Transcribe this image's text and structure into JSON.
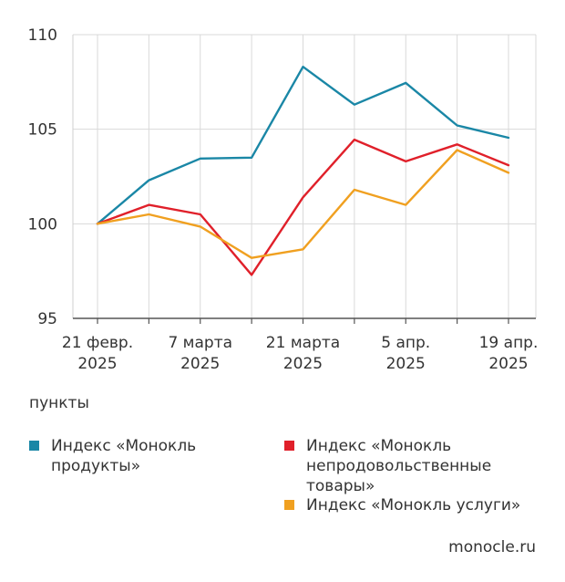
{
  "chart_data": {
    "type": "line",
    "title": "",
    "xlabel": "",
    "ylabel": "пункты",
    "ylim": [
      95,
      110
    ],
    "yticks": [
      95,
      100,
      105,
      110
    ],
    "x": [
      0,
      1,
      2,
      3,
      4,
      5,
      6,
      7,
      8
    ],
    "xtick_labels": [
      {
        "x": 0,
        "line1": "21 февр.",
        "line2": "2025"
      },
      {
        "x": 2,
        "line1": "7 марта",
        "line2": "2025"
      },
      {
        "x": 4,
        "line1": "21 марта",
        "line2": "2025"
      },
      {
        "x": 6,
        "line1": "5 апр.",
        "line2": "2025"
      },
      {
        "x": 8,
        "line1": "19 апр.",
        "line2": "2025"
      }
    ],
    "series": [
      {
        "name": "Индекс «Монокль продукты»",
        "color": "#1a87a6",
        "values": [
          100.0,
          102.3,
          103.45,
          103.5,
          108.3,
          106.3,
          107.45,
          105.2,
          104.55
        ]
      },
      {
        "name": "Индекс «Монокль непродовольственные товары»",
        "color": "#e0202a",
        "values": [
          100.0,
          101.0,
          100.5,
          97.3,
          101.4,
          104.45,
          103.3,
          104.2,
          103.1
        ]
      },
      {
        "name": "Индекс «Монокль услуги»",
        "color": "#f0a020",
        "values": [
          100.0,
          100.5,
          99.85,
          98.2,
          98.65,
          101.8,
          101.0,
          103.9,
          102.7
        ]
      }
    ]
  },
  "units_label": "пункты",
  "legend": [
    {
      "label": "Индекс «Монокль\nпродукты»",
      "color": "#1a87a6"
    },
    {
      "label": "Индекс «Монокль\nнепродовольственные\nтовары»",
      "color": "#e0202a"
    },
    {
      "label": "Индекс «Монокль услуги»",
      "color": "#f0a020"
    }
  ],
  "source": "monocle.ru"
}
